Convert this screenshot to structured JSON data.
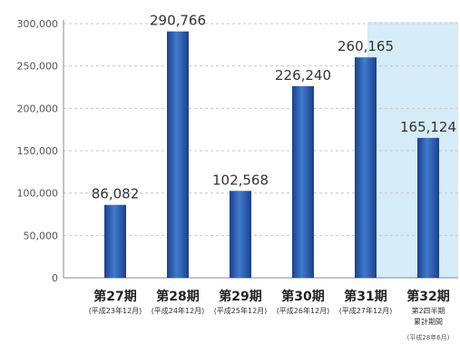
{
  "chart_data": {
    "type": "bar",
    "title": "",
    "xlabel": "",
    "ylabel": "",
    "ylim": [
      0,
      300000
    ],
    "yticks": [
      "0",
      "50,000",
      "100,000",
      "150,000",
      "200,000",
      "250,000",
      "300,000"
    ],
    "ytick_values": [
      0,
      50000,
      100000,
      150000,
      200000,
      250000,
      300000
    ],
    "grid": true,
    "categories": [
      "第27期",
      "第28期",
      "第29期",
      "第30期",
      "第31期",
      "第32期"
    ],
    "category_sublabels": [
      [
        "(平成23年12月)"
      ],
      [
        "(平成24年12月)"
      ],
      [
        "(平成25年12月)"
      ],
      [
        "(平成26年12月)"
      ],
      [
        "(平成27年12月)"
      ],
      [
        "第2四半期",
        "累計期間"
      ]
    ],
    "footnote": "(平成28年6月)",
    "values": [
      86082,
      290766,
      102568,
      226240,
      260165,
      165124
    ],
    "value_labels": [
      "86,082",
      "290,766",
      "102,568",
      "226,240",
      "260,165",
      "165,124"
    ],
    "highlight_index": 5,
    "colors": {
      "bar_dark": "#1c3f8f",
      "bar_light": "#3f7ccc",
      "highlight_bg": "#d6ecf8",
      "grid": "#c8c8c8",
      "axis": "#888888"
    }
  }
}
